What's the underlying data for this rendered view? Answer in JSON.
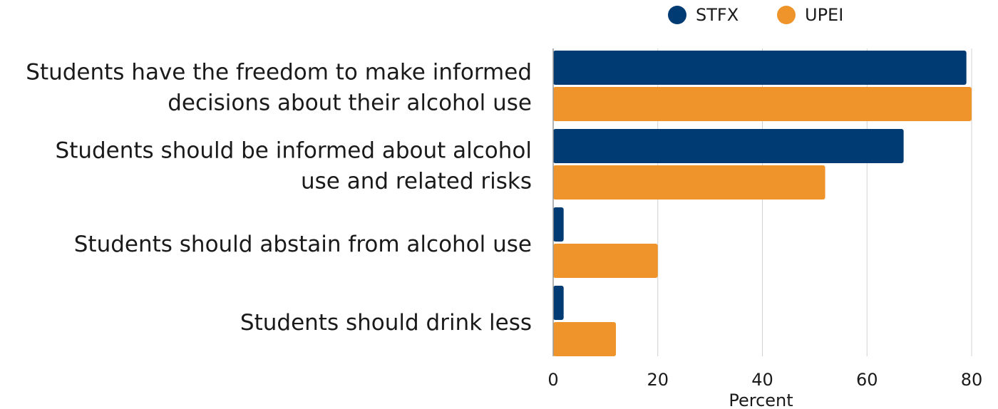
{
  "chart_data": {
    "type": "bar",
    "orientation": "horizontal",
    "categories": [
      [
        "Students have the freedom to make informed",
        "decisions about their alcohol use"
      ],
      [
        "Students should be informed about alcohol",
        "use and related risks"
      ],
      [
        "Students should abstain from alcohol use"
      ],
      [
        "Students should drink less"
      ]
    ],
    "series": [
      {
        "name": "STFX",
        "color": "#003B73",
        "values": [
          79,
          67,
          2,
          2
        ]
      },
      {
        "name": "UPEI",
        "color": "#EE942A",
        "values": [
          80,
          52,
          20,
          12
        ]
      }
    ],
    "xlabel": "Percent",
    "xlim": [
      0,
      80
    ],
    "xticks": [
      0,
      20,
      40,
      60,
      80
    ],
    "grid": "vertical",
    "legend_position": "top"
  }
}
